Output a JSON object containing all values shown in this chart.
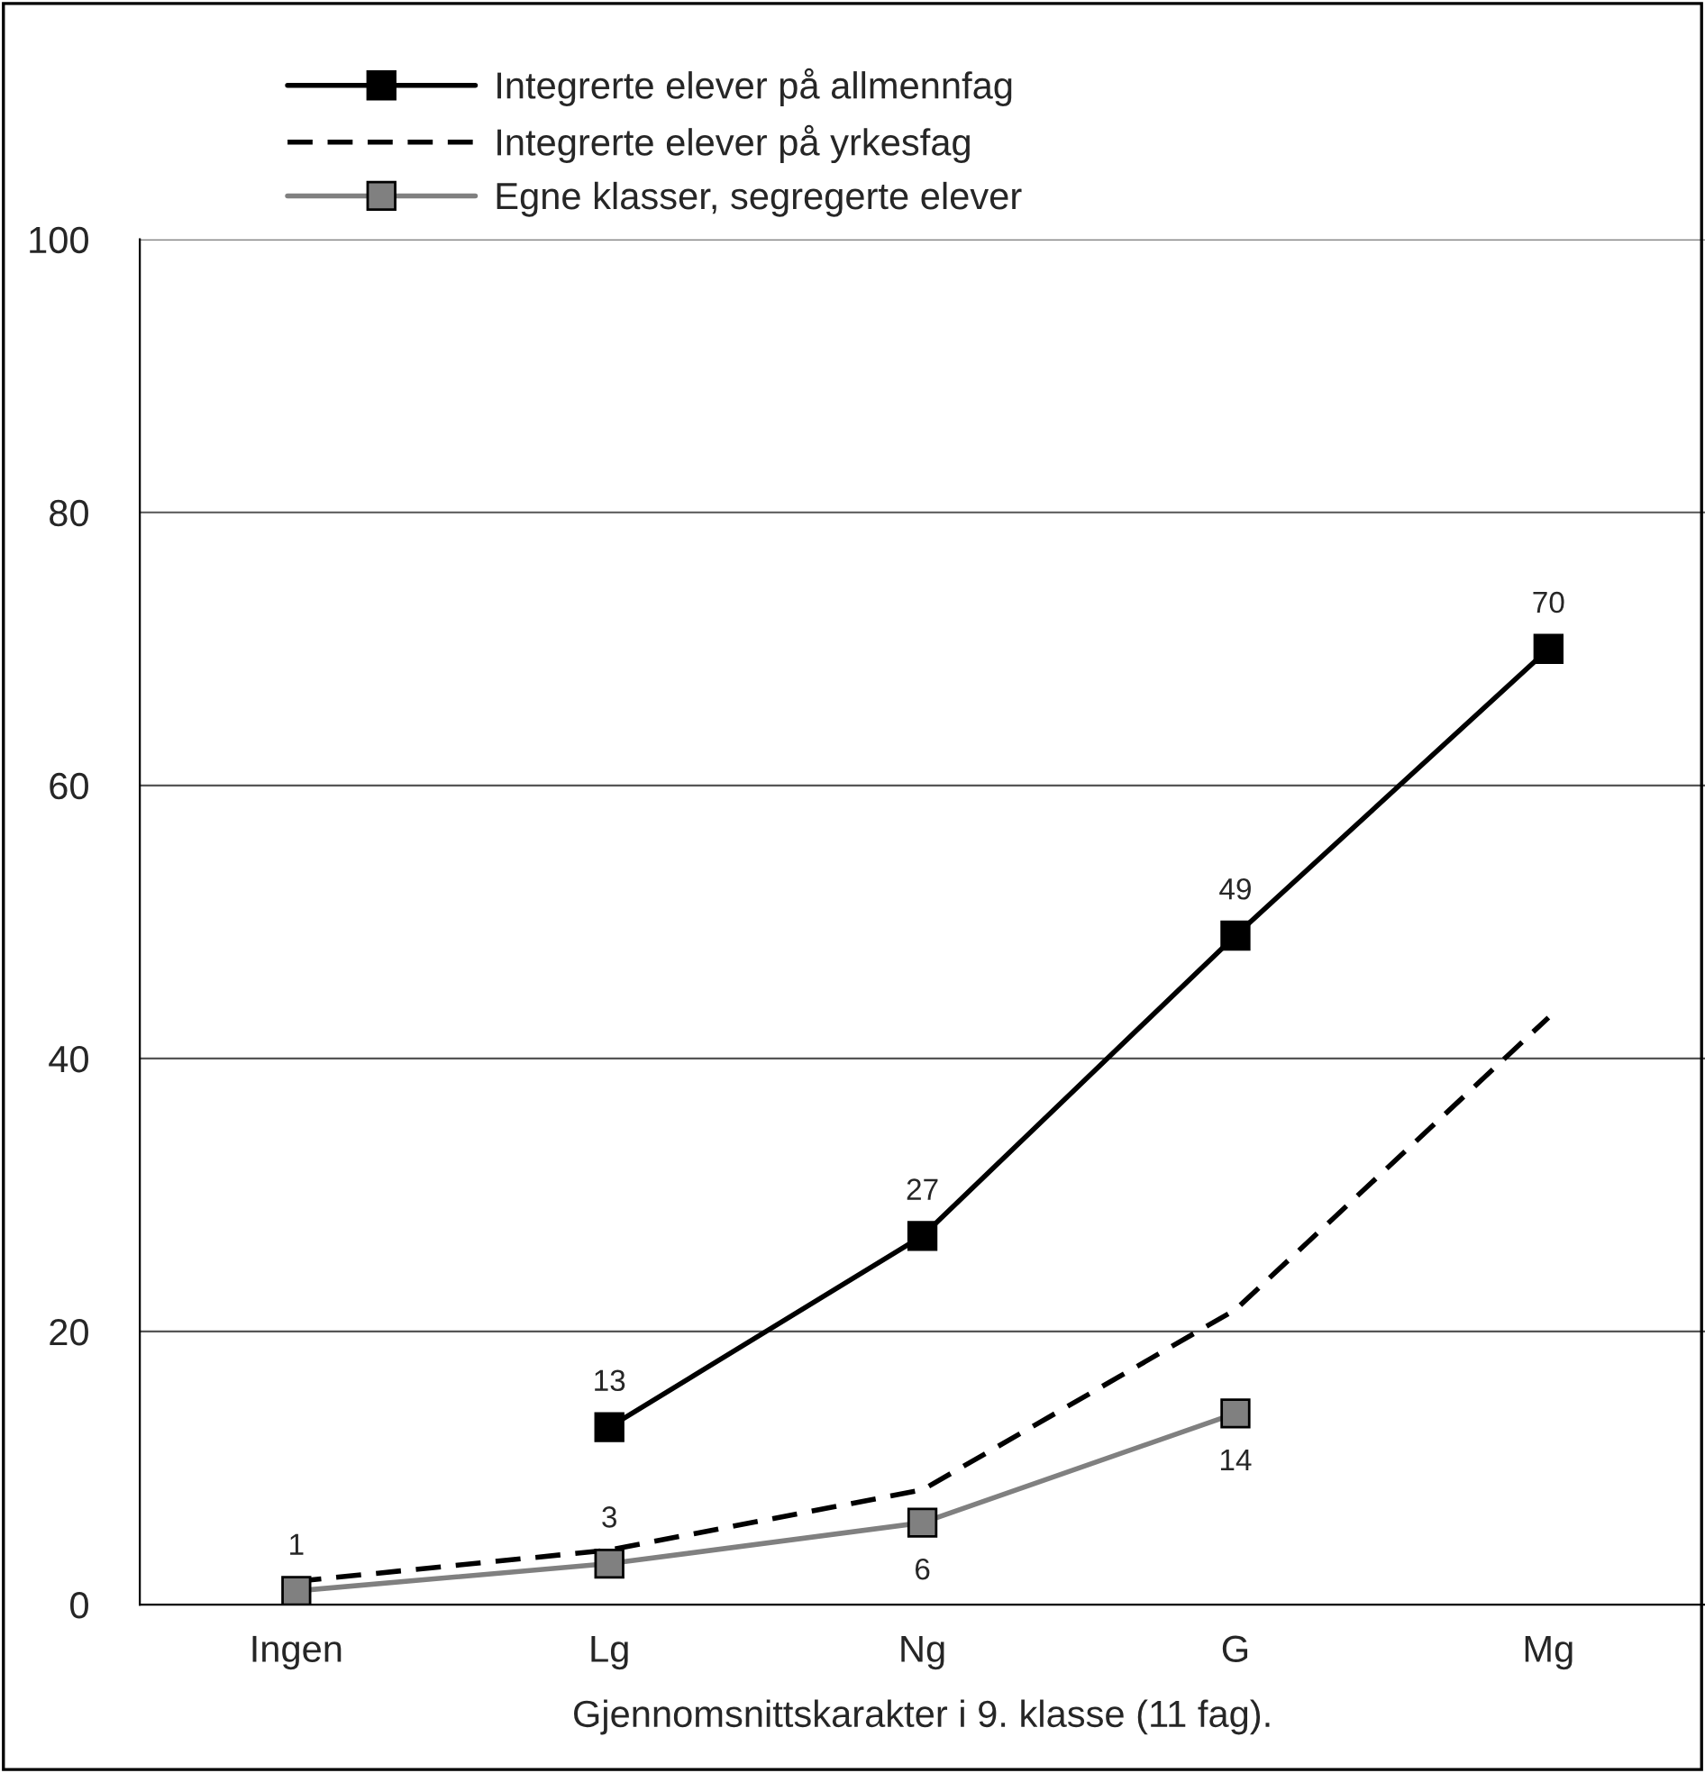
{
  "chart_data": {
    "type": "line",
    "categories": [
      "Ingen",
      "Lg",
      "Ng",
      "G",
      "Mg"
    ],
    "xlabel": "Gjennomsnittskarakter i 9. klasse (11 fag).",
    "ylim": [
      0,
      100
    ],
    "yticks": [
      0,
      20,
      40,
      60,
      80,
      100
    ],
    "grid": "y",
    "legend": "top left",
    "series": [
      {
        "name": "Integrerte elever på allmennfag",
        "color": "#000000",
        "line_style": "solid",
        "marker": "square",
        "values": [
          null,
          13,
          27,
          49,
          70
        ],
        "value_labels": [
          null,
          "13",
          "27",
          "49",
          "70"
        ]
      },
      {
        "name": "Integrerte elever på yrkesfag",
        "color": "#000000",
        "line_style": "dashed",
        "marker": "none",
        "values": [
          1.7,
          4,
          8.4,
          21.6,
          43
        ]
      },
      {
        "name": "Egne klasser, segregerte elever",
        "color": "#808080",
        "line_style": "solid",
        "marker": "square",
        "values": [
          1,
          3,
          6,
          14,
          null
        ],
        "value_labels": [
          "1",
          "3",
          "6",
          "14",
          null
        ]
      }
    ]
  }
}
